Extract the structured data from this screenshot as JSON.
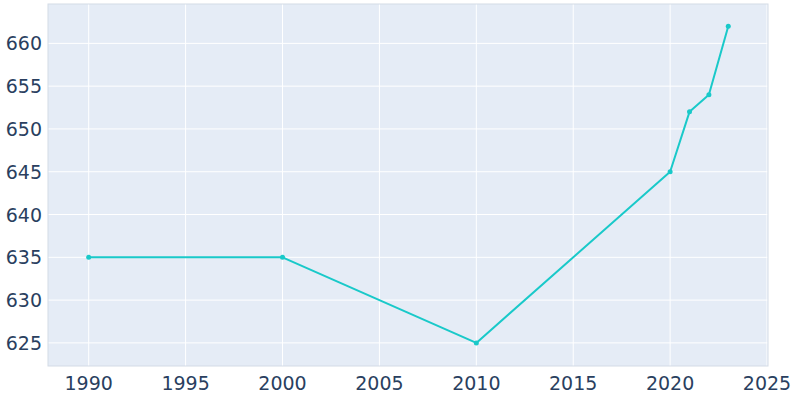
{
  "chart_data": {
    "type": "line",
    "x": [
      1990,
      2000,
      2010,
      2020,
      2021,
      2022,
      2023
    ],
    "values": [
      635,
      635,
      625,
      645,
      652,
      654,
      662
    ],
    "color": "#19c9c9",
    "marker": "circle",
    "xlim": [
      1987.9,
      2025.05
    ],
    "xticks": [
      1990,
      1995,
      2000,
      2005,
      2010,
      2015,
      2020,
      2025
    ],
    "ylim": [
      622.3,
      664.6
    ],
    "yticks": [
      625,
      630,
      635,
      640,
      645,
      650,
      655,
      660
    ],
    "grid": true
  }
}
